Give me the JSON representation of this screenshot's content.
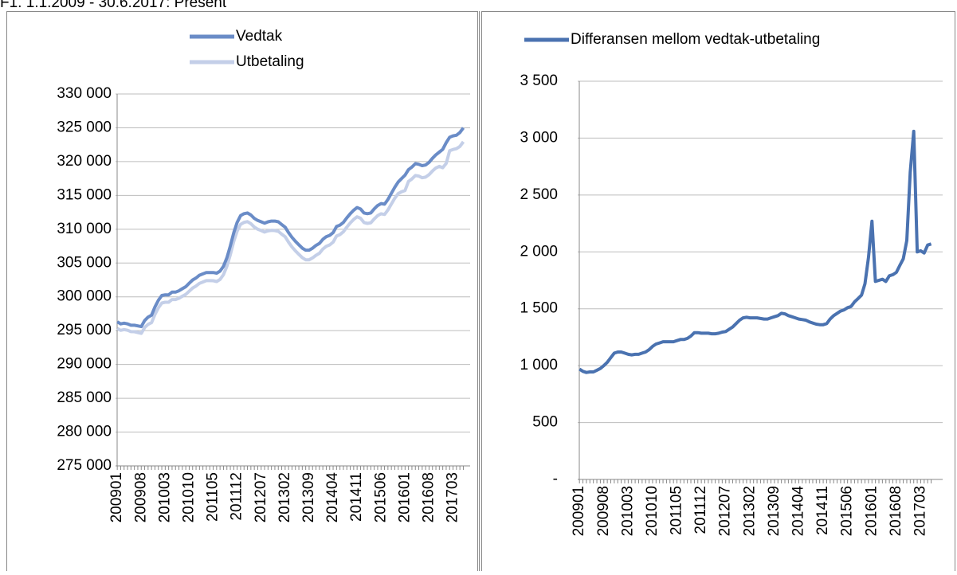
{
  "caption": "F1. 1.1.2009 - 30.6.2017: Present",
  "chart_data": [
    {
      "type": "line",
      "legend": "top",
      "grid": true,
      "categories": [
        "200901",
        null,
        null,
        null,
        null,
        null,
        null,
        "200908",
        null,
        null,
        null,
        null,
        null,
        null,
        "201003",
        null,
        null,
        null,
        null,
        null,
        null,
        "201010",
        null,
        null,
        null,
        null,
        null,
        null,
        "201105",
        null,
        null,
        null,
        null,
        null,
        null,
        "201112",
        null,
        null,
        null,
        null,
        null,
        null,
        "201207",
        null,
        null,
        null,
        null,
        null,
        null,
        "201302",
        null,
        null,
        null,
        null,
        null,
        null,
        "201309",
        null,
        null,
        null,
        null,
        null,
        null,
        "201404",
        null,
        null,
        null,
        null,
        null,
        null,
        "201411",
        null,
        null,
        null,
        null,
        null,
        null,
        "201506",
        null,
        null,
        null,
        null,
        null,
        null,
        "201601",
        null,
        null,
        null,
        null,
        null,
        null,
        "201608",
        null,
        null,
        null,
        null,
        null,
        null,
        "201703",
        null,
        null,
        null
      ],
      "ylim": [
        275000,
        330000
      ],
      "yticks": [
        {
          "value": 275000,
          "label": "275 000"
        },
        {
          "value": 280000,
          "label": "280 000"
        },
        {
          "value": 285000,
          "label": "285 000"
        },
        {
          "value": 290000,
          "label": "290 000"
        },
        {
          "value": 295000,
          "label": "295 000"
        },
        {
          "value": 300000,
          "label": "300 000"
        },
        {
          "value": 305000,
          "label": "305 000"
        },
        {
          "value": 310000,
          "label": "310 000"
        },
        {
          "value": 315000,
          "label": "315 000"
        },
        {
          "value": 320000,
          "label": "320 000"
        },
        {
          "value": 325000,
          "label": "325 000"
        },
        {
          "value": 330000,
          "label": "330 000"
        }
      ],
      "series": [
        {
          "name": "Vedtak",
          "color": "#6a8cc7",
          "values": [
            296300,
            296000,
            296100,
            296000,
            295800,
            295800,
            295700,
            295600,
            296500,
            297000,
            297300,
            298500,
            299500,
            300200,
            300300,
            300300,
            300700,
            300700,
            300900,
            301200,
            301500,
            302000,
            302500,
            302800,
            303200,
            303400,
            303600,
            303600,
            303600,
            303500,
            303800,
            304500,
            305800,
            307500,
            309500,
            311000,
            312000,
            312300,
            312400,
            312100,
            311600,
            311300,
            311100,
            310900,
            311100,
            311200,
            311200,
            311100,
            310700,
            310300,
            309500,
            308800,
            308200,
            307700,
            307200,
            306900,
            306900,
            307200,
            307600,
            307900,
            308500,
            308900,
            309100,
            309500,
            310400,
            310600,
            311000,
            311700,
            312300,
            312800,
            313200,
            313000,
            312400,
            312300,
            312400,
            313000,
            313500,
            313800,
            313700,
            314400,
            315300,
            316200,
            317000,
            317500,
            318000,
            318800,
            319200,
            319700,
            319600,
            319400,
            319500,
            319900,
            320500,
            321000,
            321400,
            321800,
            322800,
            323600,
            323800,
            323900,
            324300,
            325000
          ]
        },
        {
          "name": "Utbetaling",
          "color": "#c4cfe8",
          "values": [
            295330,
            295050,
            295160,
            295055,
            294855,
            294840,
            294725,
            294600,
            295470,
            295930,
            296190,
            297380,
            298380,
            299090,
            299200,
            299205,
            299600,
            299600,
            299790,
            300080,
            300360,
            300830,
            301310,
            301600,
            301990,
            302190,
            302390,
            302390,
            302380,
            302270,
            302570,
            303260,
            304540,
            306210,
            308210,
            309715,
            310715,
            311015,
            311120,
            310820,
            310315,
            310005,
            309800,
            309580,
            309760,
            309830,
            309800,
            309680,
            309275,
            308880,
            308080,
            307380,
            306785,
            306290,
            305790,
            305480,
            305470,
            305760,
            306140,
            306445,
            307060,
            307470,
            307680,
            308090,
            308995,
            309200,
            309615,
            310325,
            310935,
            311440,
            311840,
            311630,
            310990,
            310860,
            310940,
            311520,
            312010,
            312290,
            312180,
            312840,
            313710,
            314580,
            315280,
            315550,
            315730,
            317060,
            317450,
            317940,
            317860,
            317610,
            317700,
            318080,
            318620,
            319060,
            319300,
            319100,
            319740,
            321600,
            321790,
            321910,
            322240,
            322930
          ]
        }
      ]
    },
    {
      "type": "line",
      "legend": "top",
      "grid": true,
      "categories": [
        "200901",
        null,
        null,
        null,
        null,
        null,
        null,
        "200908",
        null,
        null,
        null,
        null,
        null,
        null,
        "201003",
        null,
        null,
        null,
        null,
        null,
        null,
        "201010",
        null,
        null,
        null,
        null,
        null,
        null,
        "201105",
        null,
        null,
        null,
        null,
        null,
        null,
        "201112",
        null,
        null,
        null,
        null,
        null,
        null,
        "201207",
        null,
        null,
        null,
        null,
        null,
        null,
        "201302",
        null,
        null,
        null,
        null,
        null,
        null,
        "201309",
        null,
        null,
        null,
        null,
        null,
        null,
        "201404",
        null,
        null,
        null,
        null,
        null,
        null,
        "201411",
        null,
        null,
        null,
        null,
        null,
        null,
        "201506",
        null,
        null,
        null,
        null,
        null,
        null,
        "201601",
        null,
        null,
        null,
        null,
        null,
        null,
        "201608",
        null,
        null,
        null,
        null,
        null,
        null,
        "201703",
        null,
        null,
        null
      ],
      "ylim": [
        0,
        3500
      ],
      "yticks": [
        {
          "value": 0,
          "label": "-"
        },
        500,
        {
          "value": 1000,
          "label": "1 000"
        },
        {
          "value": 1500,
          "label": "1 500"
        },
        {
          "value": 2000,
          "label": "2 000"
        },
        {
          "value": 2500,
          "label": "2 500"
        },
        {
          "value": 3000,
          "label": "3 000"
        },
        {
          "value": 3500,
          "label": "3 500"
        }
      ],
      "series": [
        {
          "name": "Differansen mellom vedtak-utbetaling",
          "color": "#4a72b0",
          "values": [
            970,
            950,
            940,
            945,
            945,
            960,
            975,
            1000,
            1030,
            1070,
            1110,
            1120,
            1120,
            1110,
            1100,
            1095,
            1100,
            1100,
            1110,
            1120,
            1140,
            1170,
            1190,
            1200,
            1210,
            1210,
            1210,
            1210,
            1220,
            1230,
            1230,
            1240,
            1260,
            1290,
            1290,
            1285,
            1285,
            1285,
            1280,
            1280,
            1285,
            1295,
            1300,
            1320,
            1340,
            1370,
            1400,
            1420,
            1425,
            1420,
            1420,
            1420,
            1415,
            1410,
            1410,
            1420,
            1430,
            1440,
            1460,
            1455,
            1440,
            1430,
            1420,
            1410,
            1405,
            1400,
            1385,
            1375,
            1365,
            1360,
            1360,
            1370,
            1410,
            1440,
            1460,
            1480,
            1490,
            1510,
            1520,
            1560,
            1590,
            1620,
            1720,
            1950,
            2270,
            1740,
            1750,
            1760,
            1740,
            1790,
            1800,
            1820,
            1880,
            1940,
            2100,
            2700,
            3060,
            2000,
            2010,
            1990,
            2060,
            2070
          ]
        }
      ]
    }
  ]
}
